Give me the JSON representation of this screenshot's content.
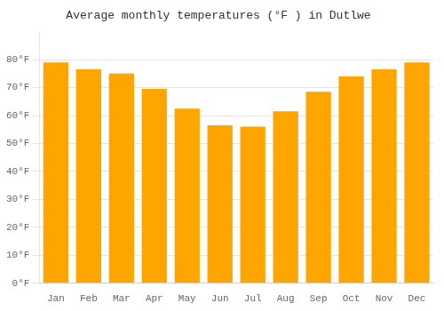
{
  "chart_data": {
    "type": "bar",
    "title": "Average monthly temperatures (°F ) in Dutlwe",
    "categories": [
      "Jan",
      "Feb",
      "Mar",
      "Apr",
      "May",
      "Jun",
      "Jul",
      "Aug",
      "Sep",
      "Oct",
      "Nov",
      "Dec"
    ],
    "values": [
      79,
      76.5,
      75,
      69.5,
      62.5,
      56.5,
      56,
      61.5,
      68.5,
      74,
      76.5,
      79
    ],
    "color": "#FFA500",
    "ylim": [
      0,
      90
    ],
    "yticks": [
      {
        "value": 0,
        "label": "0°F"
      },
      {
        "value": 10,
        "label": "10°F"
      },
      {
        "value": 20,
        "label": "20°F"
      },
      {
        "value": 30,
        "label": "30°F"
      },
      {
        "value": 40,
        "label": "40°F"
      },
      {
        "value": 50,
        "label": "50°F"
      },
      {
        "value": 60,
        "label": "60°F"
      },
      {
        "value": 70,
        "label": "70°F"
      },
      {
        "value": 80,
        "label": "80°F"
      }
    ],
    "grid": true
  }
}
